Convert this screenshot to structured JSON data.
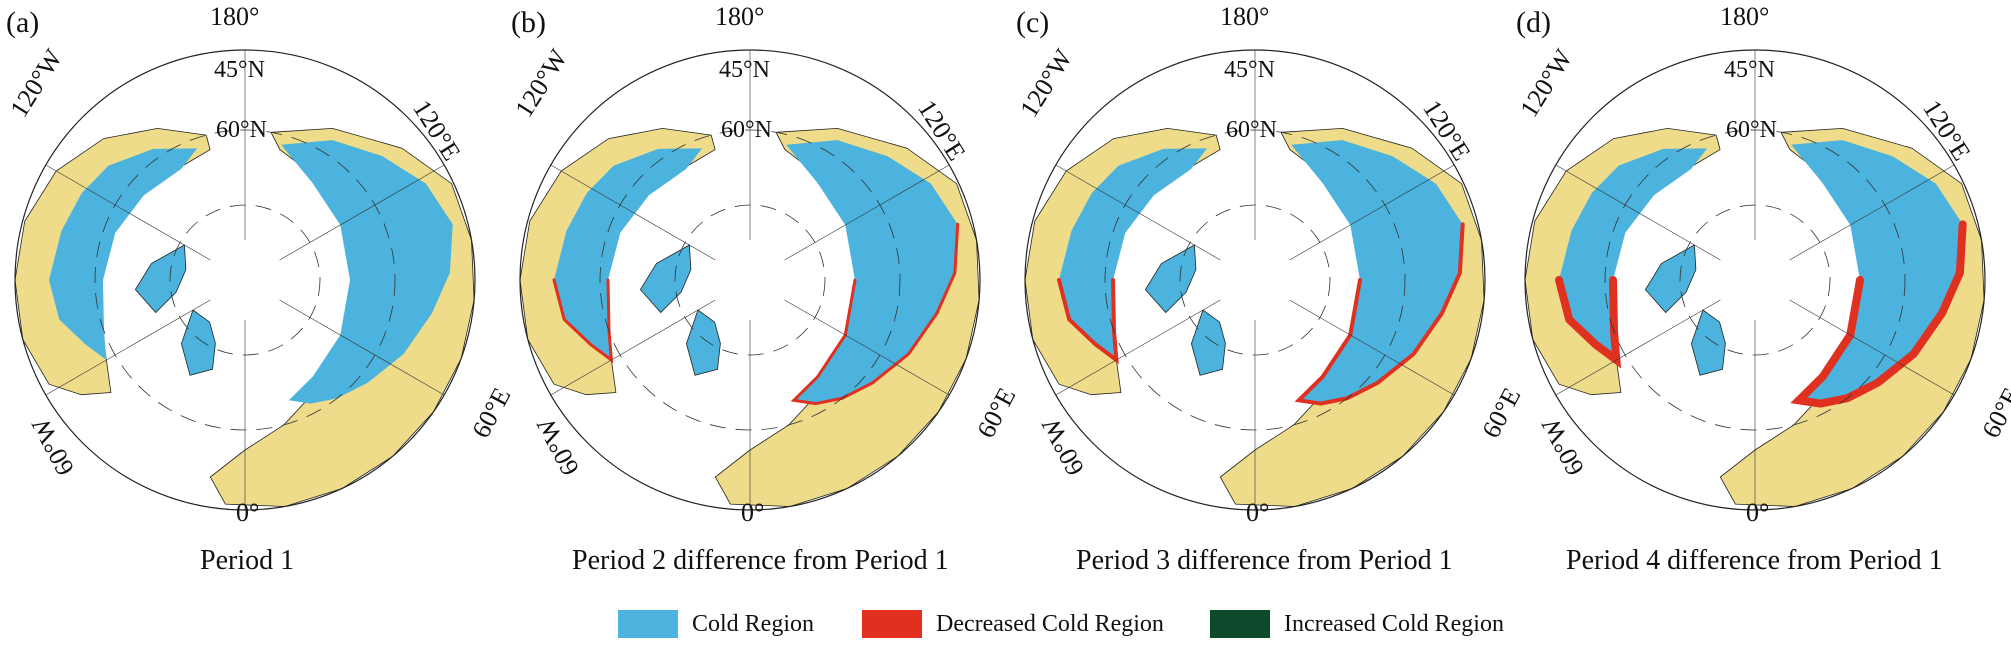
{
  "panels": [
    {
      "letter": "(a)",
      "caption": "Period 1",
      "variant": "base"
    },
    {
      "letter": "(b)",
      "caption": "Period 2 difference from Period 1",
      "variant": "p2"
    },
    {
      "letter": "(c)",
      "caption": "Period 3 difference from Period 1",
      "variant": "p3"
    },
    {
      "letter": "(d)",
      "caption": "Period 4 difference from Period 1",
      "variant": "p4"
    }
  ],
  "map_labels": {
    "lon_180": "180°",
    "lon_0": "0°",
    "lon_120w": "120°W",
    "lon_120e": "120°E",
    "lon_60w": "60°W",
    "lon_60e": "60°E",
    "lat_45n": "45°N",
    "lat_60n": "60°N"
  },
  "legend": [
    {
      "label": "Cold Region",
      "color": "#4bb3dd"
    },
    {
      "label": "Decreased Cold Region",
      "color": "#e03020"
    },
    {
      "label": "Increased Cold Region",
      "color": "#0d4a2c"
    }
  ],
  "colors": {
    "land": "#eedc8a",
    "ocean": "#ffffff",
    "cold": "#4bb3dd",
    "decreased": "#e03020",
    "border": "#222222"
  }
}
